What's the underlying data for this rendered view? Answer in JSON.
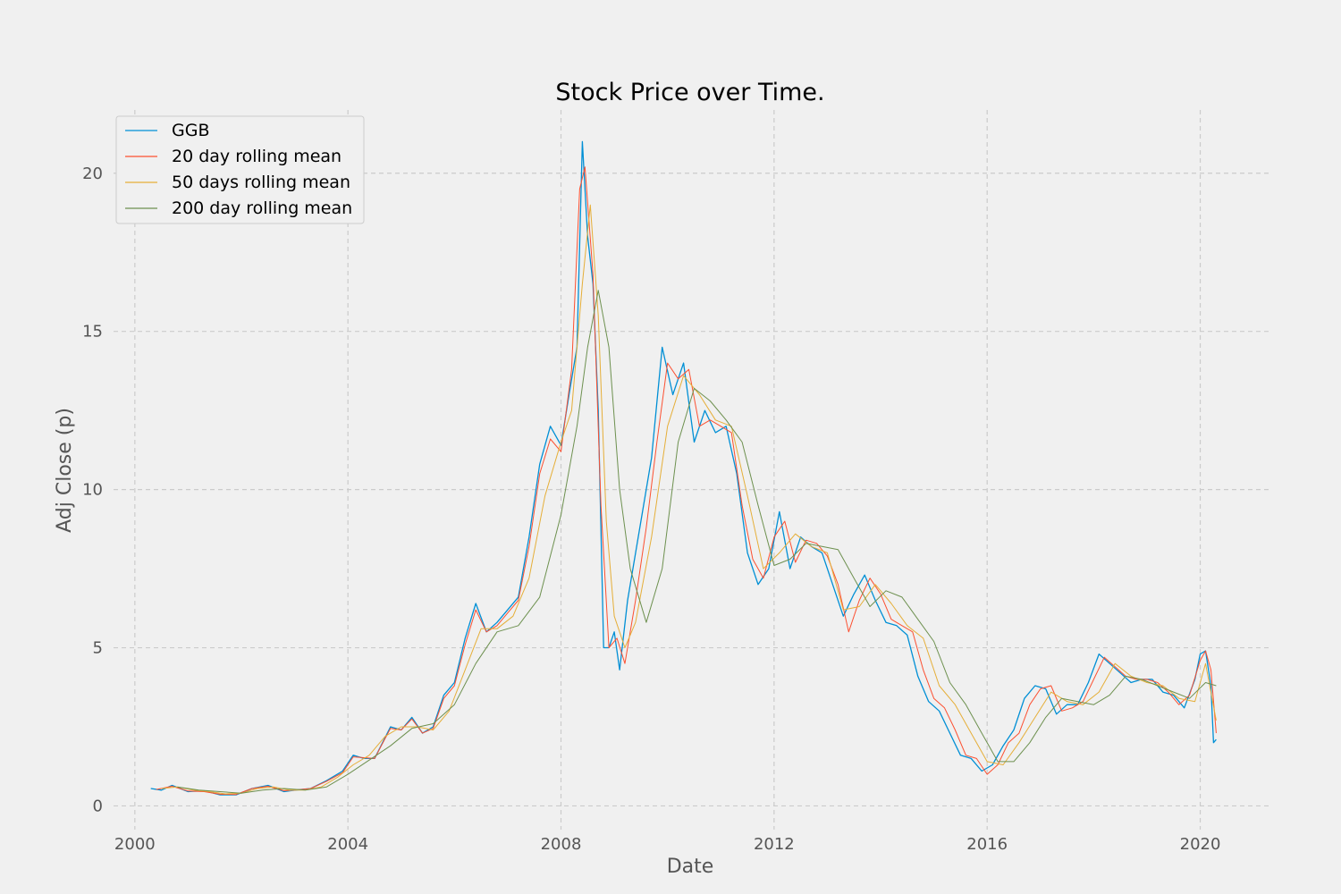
{
  "chart_data": {
    "type": "line",
    "title": "Stock Price over Time.",
    "xlabel": "Date",
    "ylabel": "Adj Close (p)",
    "xlim": [
      1999.6,
      2021.3
    ],
    "ylim": [
      -0.75,
      22.0
    ],
    "x_ticks": [
      2000,
      2004,
      2008,
      2012,
      2016,
      2020
    ],
    "x_tick_labels": [
      "2000",
      "2004",
      "2008",
      "2012",
      "2016",
      "2020"
    ],
    "y_ticks": [
      0,
      5,
      10,
      15,
      20
    ],
    "y_tick_labels": [
      "0",
      "5",
      "10",
      "15",
      "20"
    ],
    "grid": true,
    "legend_position": "top-left",
    "series": [
      {
        "name": "GGB",
        "color": "#008fd5",
        "x": [
          2000.3,
          2000.5,
          2000.7,
          2001.0,
          2001.3,
          2001.6,
          2001.9,
          2002.2,
          2002.5,
          2002.8,
          2003.0,
          2003.3,
          2003.6,
          2003.9,
          2004.1,
          2004.3,
          2004.5,
          2004.8,
          2005.0,
          2005.2,
          2005.4,
          2005.6,
          2005.8,
          2006.0,
          2006.2,
          2006.4,
          2006.6,
          2006.8,
          2007.0,
          2007.2,
          2007.4,
          2007.6,
          2007.8,
          2008.0,
          2008.15,
          2008.3,
          2008.4,
          2008.5,
          2008.6,
          2008.7,
          2008.8,
          2008.9,
          2009.0,
          2009.1,
          2009.25,
          2009.5,
          2009.7,
          2009.9,
          2010.1,
          2010.3,
          2010.5,
          2010.7,
          2010.9,
          2011.1,
          2011.3,
          2011.5,
          2011.7,
          2011.9,
          2012.1,
          2012.3,
          2012.5,
          2012.7,
          2012.9,
          2013.1,
          2013.3,
          2013.5,
          2013.7,
          2013.9,
          2014.1,
          2014.3,
          2014.5,
          2014.7,
          2014.9,
          2015.1,
          2015.3,
          2015.5,
          2015.7,
          2015.9,
          2016.1,
          2016.3,
          2016.5,
          2016.7,
          2016.9,
          2017.1,
          2017.3,
          2017.5,
          2017.7,
          2017.9,
          2018.1,
          2018.3,
          2018.5,
          2018.7,
          2018.9,
          2019.1,
          2019.3,
          2019.5,
          2019.7,
          2019.9,
          2020.0,
          2020.1,
          2020.2,
          2020.25,
          2020.3
        ],
        "y": [
          0.55,
          0.5,
          0.65,
          0.45,
          0.48,
          0.35,
          0.35,
          0.55,
          0.65,
          0.45,
          0.5,
          0.55,
          0.8,
          1.1,
          1.6,
          1.5,
          1.5,
          2.5,
          2.4,
          2.8,
          2.3,
          2.5,
          3.5,
          3.9,
          5.3,
          6.4,
          5.5,
          5.8,
          6.2,
          6.6,
          8.5,
          10.8,
          12.0,
          11.4,
          13.0,
          14.5,
          21.0,
          18.0,
          16.5,
          12.5,
          5.0,
          5.0,
          5.5,
          4.3,
          6.5,
          9.0,
          11.0,
          14.5,
          13.0,
          14.0,
          11.5,
          12.5,
          11.8,
          12.0,
          10.5,
          8.0,
          7.0,
          7.5,
          9.3,
          7.5,
          8.5,
          8.2,
          8.0,
          7.0,
          6.0,
          6.7,
          7.3,
          6.5,
          5.8,
          5.7,
          5.4,
          4.1,
          3.3,
          3.0,
          2.3,
          1.6,
          1.5,
          1.1,
          1.3,
          1.9,
          2.4,
          3.4,
          3.8,
          3.7,
          2.9,
          3.2,
          3.2,
          3.9,
          4.8,
          4.5,
          4.2,
          3.9,
          4.0,
          4.0,
          3.6,
          3.5,
          3.1,
          4.0,
          4.8,
          4.9,
          3.8,
          2.0,
          2.1
        ]
      },
      {
        "name": "20 day rolling mean",
        "color": "#fc4f30",
        "x": [
          2000.4,
          2000.7,
          2001.0,
          2001.3,
          2001.6,
          2001.9,
          2002.2,
          2002.5,
          2002.8,
          2003.0,
          2003.3,
          2003.6,
          2003.9,
          2004.1,
          2004.5,
          2004.8,
          2005.0,
          2005.2,
          2005.4,
          2005.6,
          2005.8,
          2006.0,
          2006.2,
          2006.4,
          2006.6,
          2006.8,
          2007.0,
          2007.2,
          2007.4,
          2007.6,
          2007.8,
          2008.0,
          2008.2,
          2008.35,
          2008.45,
          2008.6,
          2008.75,
          2008.9,
          2009.05,
          2009.2,
          2009.4,
          2009.6,
          2009.8,
          2010.0,
          2010.2,
          2010.4,
          2010.6,
          2010.8,
          2011.0,
          2011.2,
          2011.4,
          2011.6,
          2011.8,
          2012.0,
          2012.2,
          2012.4,
          2012.6,
          2012.8,
          2013.0,
          2013.2,
          2013.4,
          2013.6,
          2013.8,
          2014.0,
          2014.2,
          2014.4,
          2014.6,
          2014.8,
          2015.0,
          2015.2,
          2015.4,
          2015.6,
          2015.8,
          2016.0,
          2016.2,
          2016.4,
          2016.6,
          2016.8,
          2017.0,
          2017.2,
          2017.4,
          2017.6,
          2017.8,
          2018.0,
          2018.2,
          2018.4,
          2018.6,
          2018.8,
          2019.0,
          2019.2,
          2019.4,
          2019.6,
          2019.8,
          2020.0,
          2020.1,
          2020.2,
          2020.3
        ],
        "y": [
          0.52,
          0.62,
          0.47,
          0.45,
          0.37,
          0.36,
          0.55,
          0.62,
          0.48,
          0.5,
          0.55,
          0.78,
          1.05,
          1.55,
          1.5,
          2.45,
          2.4,
          2.75,
          2.3,
          2.45,
          3.4,
          3.8,
          5.1,
          6.2,
          5.5,
          5.7,
          6.1,
          6.5,
          8.2,
          10.5,
          11.6,
          11.2,
          13.8,
          19.5,
          20.2,
          16.8,
          9.5,
          5.0,
          5.3,
          4.5,
          6.5,
          8.8,
          11.5,
          14.0,
          13.5,
          13.8,
          12.0,
          12.2,
          12.0,
          11.8,
          9.5,
          7.8,
          7.2,
          8.5,
          9.0,
          7.7,
          8.4,
          8.3,
          7.9,
          7.0,
          5.5,
          6.5,
          7.2,
          6.7,
          5.9,
          5.7,
          5.5,
          4.3,
          3.4,
          3.1,
          2.4,
          1.6,
          1.5,
          1.0,
          1.3,
          2.0,
          2.3,
          3.2,
          3.7,
          3.8,
          3.0,
          3.1,
          3.3,
          4.0,
          4.7,
          4.4,
          4.1,
          4.0,
          4.0,
          3.9,
          3.6,
          3.2,
          3.5,
          4.6,
          4.9,
          4.3,
          2.3
        ]
      },
      {
        "name": "50 days rolling mean",
        "color": "#e5ae38",
        "x": [
          2000.5,
          2000.8,
          2001.1,
          2001.4,
          2001.7,
          2002.0,
          2002.3,
          2002.6,
          2002.9,
          2003.2,
          2003.5,
          2003.8,
          2004.1,
          2004.4,
          2004.7,
          2005.0,
          2005.3,
          2005.6,
          2005.9,
          2006.2,
          2006.5,
          2006.8,
          2007.1,
          2007.4,
          2007.7,
          2008.0,
          2008.2,
          2008.4,
          2008.55,
          2008.7,
          2008.85,
          2009.0,
          2009.2,
          2009.4,
          2009.7,
          2010.0,
          2010.3,
          2010.6,
          2010.9,
          2011.2,
          2011.5,
          2011.8,
          2012.1,
          2012.4,
          2012.7,
          2013.0,
          2013.3,
          2013.6,
          2013.9,
          2014.2,
          2014.5,
          2014.8,
          2015.1,
          2015.4,
          2015.7,
          2016.0,
          2016.3,
          2016.6,
          2016.9,
          2017.2,
          2017.5,
          2017.8,
          2018.1,
          2018.4,
          2018.7,
          2019.0,
          2019.3,
          2019.6,
          2019.9,
          2020.1,
          2020.3
        ],
        "y": [
          0.55,
          0.6,
          0.5,
          0.45,
          0.38,
          0.4,
          0.55,
          0.6,
          0.5,
          0.5,
          0.6,
          0.9,
          1.3,
          1.6,
          2.2,
          2.5,
          2.5,
          2.4,
          3.0,
          4.3,
          5.6,
          5.6,
          6.0,
          7.2,
          9.8,
          11.5,
          12.5,
          16.5,
          19.0,
          15.5,
          9.0,
          6.0,
          5.0,
          5.8,
          8.5,
          12.0,
          13.6,
          13.0,
          12.2,
          12.0,
          9.8,
          7.5,
          8.0,
          8.6,
          8.2,
          8.0,
          6.2,
          6.3,
          7.0,
          6.4,
          5.7,
          5.3,
          3.8,
          3.2,
          2.3,
          1.4,
          1.3,
          2.0,
          2.8,
          3.6,
          3.3,
          3.2,
          3.6,
          4.5,
          4.1,
          3.9,
          3.8,
          3.4,
          3.3,
          4.5,
          2.7
        ]
      },
      {
        "name": "200 day rolling mean",
        "color": "#6d904f",
        "x": [
          2000.8,
          2001.2,
          2001.6,
          2002.0,
          2002.4,
          2002.8,
          2003.2,
          2003.6,
          2004.0,
          2004.4,
          2004.8,
          2005.2,
          2005.6,
          2006.0,
          2006.4,
          2006.8,
          2007.2,
          2007.6,
          2008.0,
          2008.3,
          2008.5,
          2008.7,
          2008.9,
          2009.1,
          2009.3,
          2009.6,
          2009.9,
          2010.2,
          2010.5,
          2010.8,
          2011.1,
          2011.4,
          2011.7,
          2012.0,
          2012.3,
          2012.6,
          2012.9,
          2013.2,
          2013.5,
          2013.8,
          2014.1,
          2014.4,
          2014.7,
          2015.0,
          2015.3,
          2015.6,
          2015.9,
          2016.2,
          2016.5,
          2016.8,
          2017.1,
          2017.4,
          2017.7,
          2018.0,
          2018.3,
          2018.6,
          2018.9,
          2019.2,
          2019.5,
          2019.8,
          2020.1,
          2020.3
        ],
        "y": [
          0.6,
          0.5,
          0.45,
          0.4,
          0.5,
          0.55,
          0.5,
          0.6,
          1.0,
          1.45,
          1.9,
          2.45,
          2.6,
          3.2,
          4.5,
          5.5,
          5.7,
          6.6,
          9.2,
          12.0,
          14.5,
          16.3,
          14.5,
          10.0,
          7.5,
          5.8,
          7.5,
          11.5,
          13.2,
          12.8,
          12.2,
          11.5,
          9.5,
          7.6,
          7.8,
          8.3,
          8.2,
          8.1,
          7.2,
          6.3,
          6.8,
          6.6,
          5.9,
          5.2,
          3.9,
          3.2,
          2.3,
          1.4,
          1.4,
          2.0,
          2.8,
          3.4,
          3.3,
          3.2,
          3.5,
          4.1,
          4.0,
          3.8,
          3.6,
          3.4,
          3.9,
          3.8
        ]
      }
    ]
  }
}
